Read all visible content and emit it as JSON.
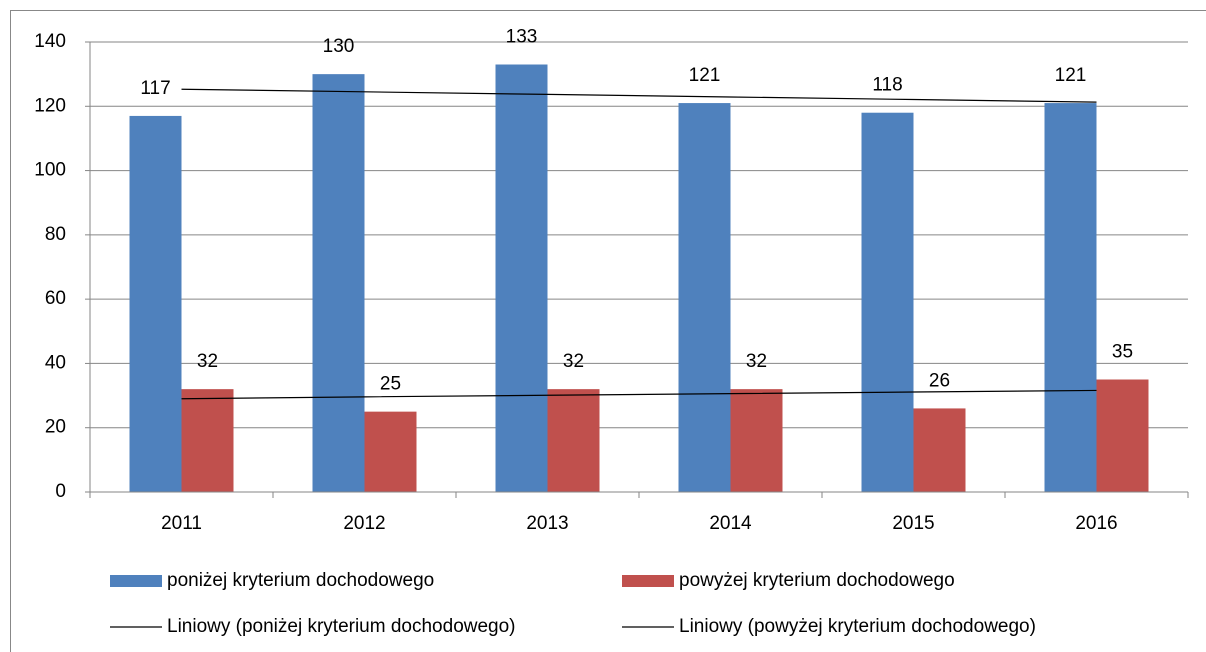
{
  "chart_data": {
    "type": "bar",
    "categories": [
      "2011",
      "2012",
      "2013",
      "2014",
      "2015",
      "2016"
    ],
    "series": [
      {
        "name": "poniżej kryterium dochodowego",
        "type": "bar",
        "color": "#4f81bd",
        "values": [
          117,
          130,
          133,
          121,
          118,
          121
        ]
      },
      {
        "name": "powyżej kryterium dochodowego",
        "type": "bar",
        "color": "#c0504d",
        "values": [
          32,
          25,
          32,
          32,
          26,
          35
        ]
      },
      {
        "name": "Liniowy (poniżej kryterium dochodowego)",
        "type": "line",
        "color": "#000000",
        "values": [
          125.3,
          124.5,
          123.7,
          122.9,
          122.1,
          121.3
        ]
      },
      {
        "name": "Liniowy (powyżej kryterium dochodowego)",
        "type": "line",
        "color": "#000000",
        "values": [
          29.0,
          29.6,
          30.1,
          30.6,
          31.1,
          31.6
        ]
      }
    ],
    "ylim": [
      0,
      140
    ],
    "yticks": [
      0,
      20,
      40,
      60,
      80,
      100,
      120,
      140
    ],
    "grid": true,
    "legend": "bottom"
  }
}
